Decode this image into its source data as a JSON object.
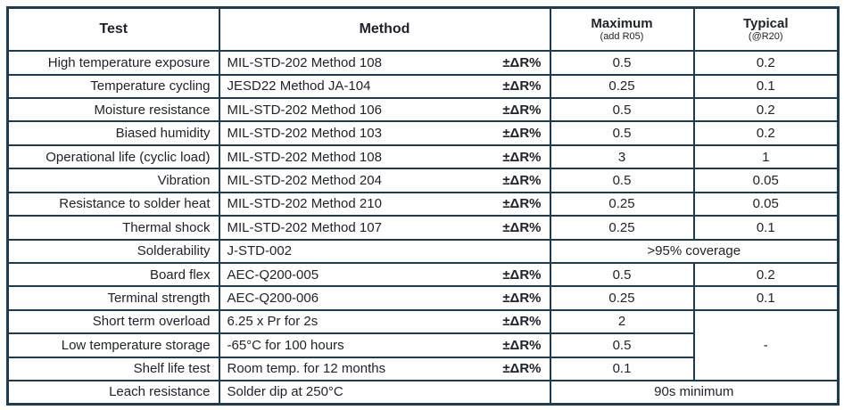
{
  "colors": {
    "border": "#1d3c52",
    "text": "#20232b",
    "background": "#ffffff"
  },
  "table": {
    "headers": {
      "test": "Test",
      "method": "Method",
      "maximum": "Maximum",
      "maximum_note": "(add R05)",
      "typical": "Typical",
      "typical_note": "(@R20)"
    },
    "rows": [
      {
        "test": "High temperature exposure",
        "method": "MIL-STD-202 Method 108",
        "delta": "±ΔR%",
        "maximum": "0.5",
        "typical": "0.2"
      },
      {
        "test": "Temperature cycling",
        "method": "JESD22 Method JA-104",
        "delta": "±ΔR%",
        "maximum": "0.25",
        "typical": "0.1"
      },
      {
        "test": "Moisture resistance",
        "method": "MIL-STD-202 Method 106",
        "delta": "±ΔR%",
        "maximum": "0.5",
        "typical": "0.2"
      },
      {
        "test": "Biased humidity",
        "method": "MIL-STD-202 Method 103",
        "delta": "±ΔR%",
        "maximum": "0.5",
        "typical": "0.2"
      },
      {
        "test": "Operational life (cyclic load)",
        "method": "MIL-STD-202 Method 108",
        "delta": "±ΔR%",
        "maximum": "3",
        "typical": "1"
      },
      {
        "test": "Vibration",
        "method": "MIL-STD-202 Method 204",
        "delta": "±ΔR%",
        "maximum": "0.5",
        "typical": "0.05"
      },
      {
        "test": "Resistance to solder heat",
        "method": "MIL-STD-202 Method 210",
        "delta": "±ΔR%",
        "maximum": "0.25",
        "typical": "0.05"
      },
      {
        "test": "Thermal shock",
        "method": "MIL-STD-202 Method 107",
        "delta": "±ΔR%",
        "maximum": "0.25",
        "typical": "0.1"
      },
      {
        "test": "Solderability",
        "method": "J-STD-002",
        "span": ">95% coverage"
      },
      {
        "test": "Board flex",
        "method": "AEC-Q200-005",
        "delta": "±ΔR%",
        "maximum": "0.5",
        "typical": "0.2"
      },
      {
        "test": "Terminal strength",
        "method": "AEC-Q200-006",
        "delta": "±ΔR%",
        "maximum": "0.25",
        "typical": "0.1"
      },
      {
        "test": "Short term overload",
        "method": "6.25 x Pr for 2s",
        "delta": "±ΔR%",
        "maximum": "2",
        "typical_merged": "-"
      },
      {
        "test": "Low temperature storage",
        "method": "-65°C for 100 hours",
        "delta": "±ΔR%",
        "maximum": "0.5"
      },
      {
        "test": "Shelf life test",
        "method": "Room temp. for 12 months",
        "delta": "±ΔR%",
        "maximum": "0.1"
      },
      {
        "test": "Leach resistance",
        "method": "Solder dip at 250°C",
        "span": "90s minimum"
      }
    ]
  }
}
